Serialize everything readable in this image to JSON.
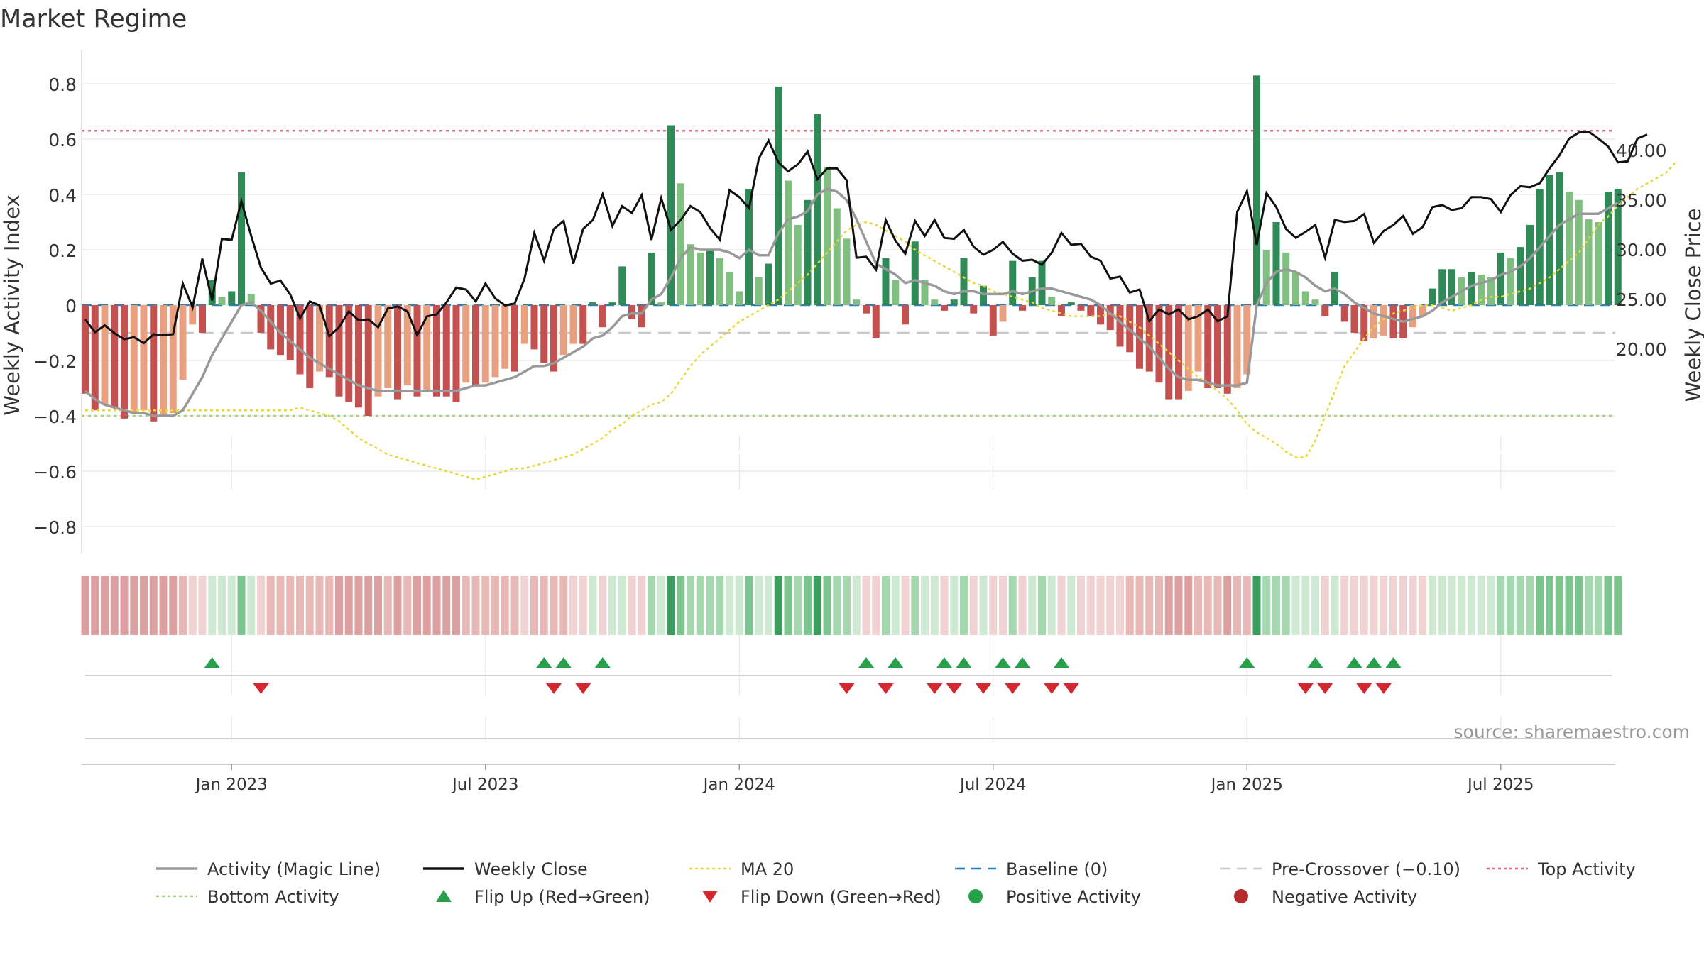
{
  "chart_data": {
    "type": "bar",
    "title": "Market Regime",
    "ylabel_left": "Weekly Activity Index",
    "ylabel_right": "Weekly Close Price",
    "source": "source: sharemaestro.com",
    "ylim_left": [
      -0.9,
      0.9
    ],
    "ylim_right": [
      19.2,
      44
    ],
    "yticks_left": [
      {
        "v": 0.8,
        "label": "0.8"
      },
      {
        "v": 0.6,
        "label": "0.6"
      },
      {
        "v": 0.4,
        "label": "0.4"
      },
      {
        "v": 0.2,
        "label": "0.2"
      },
      {
        "v": 0,
        "label": "0"
      },
      {
        "v": -0.2,
        "label": "−0.2"
      },
      {
        "v": -0.4,
        "label": "−0.4"
      },
      {
        "v": -0.6,
        "label": "−0.6"
      },
      {
        "v": -0.8,
        "label": "−0.8"
      }
    ],
    "yticks_right": [
      {
        "v": 40,
        "label": "40.00"
      },
      {
        "v": 35,
        "label": "35.00"
      },
      {
        "v": 30,
        "label": "30.00"
      },
      {
        "v": 25,
        "label": "25.00"
      },
      {
        "v": 20,
        "label": "20.00"
      }
    ],
    "xticks": [
      {
        "week": 15,
        "label": "Jan 2023"
      },
      {
        "week": 41,
        "label": "Jul 2023"
      },
      {
        "week": 67,
        "label": "Jan 2024"
      },
      {
        "week": 93,
        "label": "Jul 2024"
      },
      {
        "week": 119,
        "label": "Jan 2025"
      },
      {
        "week": 145,
        "label": "Jul 2025"
      }
    ],
    "levels": {
      "top": 0.63,
      "bottom": -0.4,
      "pre_crossover": -0.1,
      "baseline": 0
    },
    "activity": [
      -0.32,
      -0.38,
      -0.36,
      -0.37,
      -0.41,
      -0.39,
      -0.38,
      -0.42,
      -0.4,
      -0.39,
      -0.27,
      -0.07,
      -0.1,
      0.09,
      0.03,
      0.05,
      0.48,
      0.04,
      -0.1,
      -0.16,
      -0.18,
      -0.2,
      -0.25,
      -0.3,
      -0.24,
      -0.26,
      -0.33,
      -0.35,
      -0.37,
      -0.4,
      -0.33,
      -0.3,
      -0.34,
      -0.29,
      -0.33,
      -0.31,
      -0.33,
      -0.33,
      -0.35,
      -0.28,
      -0.29,
      -0.28,
      -0.26,
      -0.23,
      -0.24,
      -0.14,
      -0.16,
      -0.21,
      -0.24,
      -0.18,
      -0.14,
      -0.14,
      0.01,
      -0.08,
      0.01,
      0.14,
      -0.05,
      -0.08,
      0.19,
      0.01,
      0.65,
      0.44,
      0.22,
      0.19,
      0.2,
      0.17,
      0.12,
      0.05,
      0.42,
      0.1,
      0.15,
      0.79,
      0.45,
      0.29,
      0.38,
      0.69,
      0.5,
      0.35,
      0.24,
      0.02,
      -0.03,
      -0.12,
      0.17,
      0.09,
      -0.07,
      0.23,
      0.09,
      0.02,
      -0.02,
      0.02,
      0.17,
      -0.03,
      0.07,
      -0.11,
      -0.06,
      0.16,
      -0.02,
      0.1,
      0.16,
      0.03,
      -0.04,
      0.01,
      -0.02,
      -0.04,
      -0.07,
      -0.09,
      -0.15,
      -0.17,
      -0.23,
      -0.24,
      -0.28,
      -0.34,
      -0.34,
      -0.31,
      -0.24,
      -0.3,
      -0.3,
      -0.32,
      -0.3,
      -0.25,
      0.83,
      0.2,
      0.3,
      0.19,
      0.12,
      0.05,
      0.02,
      -0.04,
      0.12,
      -0.06,
      -0.1,
      -0.13,
      -0.12,
      -0.11,
      -0.12,
      -0.12,
      -0.08,
      -0.04,
      0.06,
      0.13,
      0.13,
      0.1,
      0.12,
      0.11,
      0.1,
      0.19,
      0.17,
      0.21,
      0.29,
      0.42,
      0.47,
      0.48,
      0.41,
      0.38,
      0.31,
      0.3,
      0.41,
      0.42
    ],
    "close": [
      23.0,
      21.7,
      22.4,
      21.6,
      21.0,
      21.2,
      20.6,
      21.5,
      21.4,
      21.5,
      26.6,
      24.2,
      29.1,
      24.9,
      31.1,
      31.0,
      34.9,
      31.4,
      28.2,
      26.6,
      26.9,
      25.5,
      23.1,
      24.8,
      24.4,
      21.3,
      22.2,
      23.8,
      22.9,
      23.0,
      22.2,
      24.1,
      24.3,
      23.8,
      21.4,
      23.3,
      23.5,
      24.7,
      26.2,
      26.0,
      24.8,
      26.6,
      25.1,
      24.4,
      24.6,
      27.1,
      31.7,
      28.9,
      32.1,
      32.9,
      28.6,
      32.1,
      33.0,
      35.6,
      32.4,
      34.4,
      33.7,
      35.5,
      31.0,
      35.2,
      32.0,
      33.0,
      34.4,
      33.8,
      32.2,
      31.0,
      36.0,
      35.3,
      34.2,
      39.2,
      41.0,
      38.8,
      37.9,
      38.6,
      39.9,
      37.1,
      38.2,
      38.2,
      37.0,
      29.2,
      29.3,
      28.0,
      33.0,
      30.9,
      29.6,
      32.9,
      31.4,
      33.0,
      31.2,
      31.1,
      32.0,
      30.3,
      29.5,
      30.0,
      30.8,
      29.6,
      28.9,
      29.0,
      28.5,
      29.7,
      31.7,
      30.5,
      30.6,
      29.3,
      28.9,
      27.1,
      27.3,
      25.7,
      26.0,
      22.8,
      24.0,
      23.5,
      24.0,
      23.0,
      23.3,
      24.0,
      22.8,
      23.3,
      33.8,
      35.9,
      30.5,
      35.7,
      34.3,
      32.1,
      31.2,
      31.8,
      32.5,
      29.2,
      33.0,
      32.8,
      32.9,
      33.6,
      30.7,
      31.9,
      32.5,
      33.4,
      31.6,
      32.3,
      34.3,
      34.5,
      34.0,
      34.2,
      35.3,
      35.3,
      35.1,
      33.8,
      35.5,
      36.4,
      36.3,
      36.7,
      38.2,
      39.5,
      41.2,
      41.8,
      41.9,
      41.2,
      40.4,
      38.8,
      38.9,
      41.2,
      41.6
    ],
    "magic_line": [
      -0.31,
      -0.34,
      -0.36,
      -0.37,
      -0.38,
      -0.39,
      -0.39,
      -0.4,
      -0.4,
      -0.4,
      -0.38,
      -0.32,
      -0.26,
      -0.18,
      -0.12,
      -0.06,
      0.0,
      0.01,
      -0.02,
      -0.06,
      -0.1,
      -0.13,
      -0.16,
      -0.19,
      -0.21,
      -0.23,
      -0.25,
      -0.27,
      -0.29,
      -0.3,
      -0.31,
      -0.31,
      -0.31,
      -0.31,
      -0.31,
      -0.31,
      -0.31,
      -0.31,
      -0.31,
      -0.3,
      -0.29,
      -0.29,
      -0.28,
      -0.27,
      -0.26,
      -0.24,
      -0.22,
      -0.22,
      -0.21,
      -0.19,
      -0.17,
      -0.15,
      -0.12,
      -0.11,
      -0.08,
      -0.04,
      -0.03,
      -0.03,
      0.02,
      0.04,
      0.1,
      0.17,
      0.21,
      0.2,
      0.2,
      0.2,
      0.19,
      0.17,
      0.2,
      0.18,
      0.18,
      0.26,
      0.31,
      0.32,
      0.34,
      0.4,
      0.42,
      0.41,
      0.38,
      0.31,
      0.23,
      0.15,
      0.13,
      0.11,
      0.08,
      0.09,
      0.08,
      0.07,
      0.05,
      0.04,
      0.05,
      0.05,
      0.04,
      0.04,
      0.04,
      0.05,
      0.04,
      0.05,
      0.06,
      0.06,
      0.05,
      0.04,
      0.03,
      0.02,
      0.0,
      -0.03,
      -0.06,
      -0.09,
      -0.12,
      -0.15,
      -0.19,
      -0.23,
      -0.26,
      -0.27,
      -0.27,
      -0.28,
      -0.29,
      -0.29,
      -0.29,
      -0.28,
      0.0,
      0.08,
      0.12,
      0.13,
      0.12,
      0.1,
      0.07,
      0.05,
      0.06,
      0.04,
      0.01,
      -0.01,
      -0.03,
      -0.04,
      -0.05,
      -0.06,
      -0.05,
      -0.04,
      -0.02,
      0.01,
      0.03,
      0.05,
      0.07,
      0.08,
      0.09,
      0.11,
      0.12,
      0.14,
      0.17,
      0.21,
      0.25,
      0.29,
      0.31,
      0.33,
      0.33,
      0.33,
      0.35,
      0.37
    ],
    "ma20": [
      -0.38,
      -0.38,
      -0.38,
      -0.38,
      -0.38,
      -0.38,
      -0.38,
      -0.38,
      -0.38,
      -0.38,
      -0.38,
      -0.38,
      -0.38,
      -0.38,
      -0.38,
      -0.38,
      -0.38,
      -0.38,
      -0.38,
      -0.38,
      -0.38,
      -0.38,
      -0.37,
      -0.38,
      -0.39,
      -0.4,
      -0.42,
      -0.45,
      -0.48,
      -0.5,
      -0.52,
      -0.54,
      -0.55,
      -0.56,
      -0.57,
      -0.58,
      -0.59,
      -0.6,
      -0.61,
      -0.62,
      -0.63,
      -0.62,
      -0.61,
      -0.6,
      -0.59,
      -0.59,
      -0.58,
      -0.57,
      -0.56,
      -0.55,
      -0.54,
      -0.52,
      -0.5,
      -0.48,
      -0.45,
      -0.43,
      -0.4,
      -0.38,
      -0.36,
      -0.35,
      -0.32,
      -0.27,
      -0.22,
      -0.18,
      -0.15,
      -0.12,
      -0.09,
      -0.06,
      -0.04,
      -0.02,
      0.0,
      0.02,
      0.05,
      0.08,
      0.11,
      0.15,
      0.19,
      0.23,
      0.27,
      0.29,
      0.3,
      0.29,
      0.27,
      0.25,
      0.23,
      0.2,
      0.18,
      0.16,
      0.14,
      0.12,
      0.1,
      0.08,
      0.07,
      0.05,
      0.04,
      0.03,
      0.02,
      0.01,
      -0.01,
      -0.02,
      -0.03,
      -0.04,
      -0.04,
      -0.04,
      -0.04,
      -0.03,
      -0.04,
      -0.06,
      -0.08,
      -0.11,
      -0.14,
      -0.17,
      -0.2,
      -0.23,
      -0.26,
      -0.28,
      -0.31,
      -0.34,
      -0.38,
      -0.43,
      -0.46,
      -0.48,
      -0.5,
      -0.53,
      -0.55,
      -0.55,
      -0.49,
      -0.4,
      -0.31,
      -0.22,
      -0.17,
      -0.12,
      -0.08,
      -0.05,
      -0.03,
      -0.02,
      -0.01,
      0.0,
      0.0,
      -0.01,
      -0.02,
      -0.01,
      0.0,
      0.02,
      0.03,
      0.03,
      0.04,
      0.05,
      0.06,
      0.08,
      0.1,
      0.13,
      0.16,
      0.19,
      0.24,
      0.29,
      0.32,
      0.36,
      0.39,
      0.42,
      0.44,
      0.46,
      0.48,
      0.52
    ],
    "flip_up_weeks": [
      13,
      47,
      49,
      53,
      80,
      83,
      88,
      90,
      94,
      96,
      100,
      119,
      126,
      130,
      132,
      134
    ],
    "flip_down_weeks": [
      18,
      48,
      51,
      78,
      82,
      87,
      89,
      92,
      95,
      99,
      101,
      125,
      127,
      131,
      133
    ],
    "legend": [
      {
        "label": "Activity (Magic Line)",
        "color": "#999999",
        "style": "line"
      },
      {
        "label": "Weekly Close",
        "color": "#111111",
        "style": "line"
      },
      {
        "label": "MA 20",
        "color": "#e8d73a",
        "style": "dotted"
      },
      {
        "label": "Baseline (0)",
        "color": "#2e7cb8",
        "style": "dashed"
      },
      {
        "label": "Pre-Crossover (−0.10)",
        "color": "#c9c9c9",
        "style": "dashed"
      },
      {
        "label": "Top Activity",
        "color": "#e06c80",
        "style": "dotted"
      },
      {
        "label": "Bottom Activity",
        "color": "#a8d37e",
        "style": "dotted"
      },
      {
        "label": "Flip Up (Red→Green)",
        "color": "#27a04a",
        "style": "triangle-up"
      },
      {
        "label": "Flip Down (Green→Red)",
        "color": "#d4282f",
        "style": "triangle-down"
      },
      {
        "label": "Positive Activity",
        "color": "#27a04a",
        "style": "circle"
      },
      {
        "label": "Negative Activity",
        "color": "#b52a2a",
        "style": "circle"
      }
    ]
  }
}
